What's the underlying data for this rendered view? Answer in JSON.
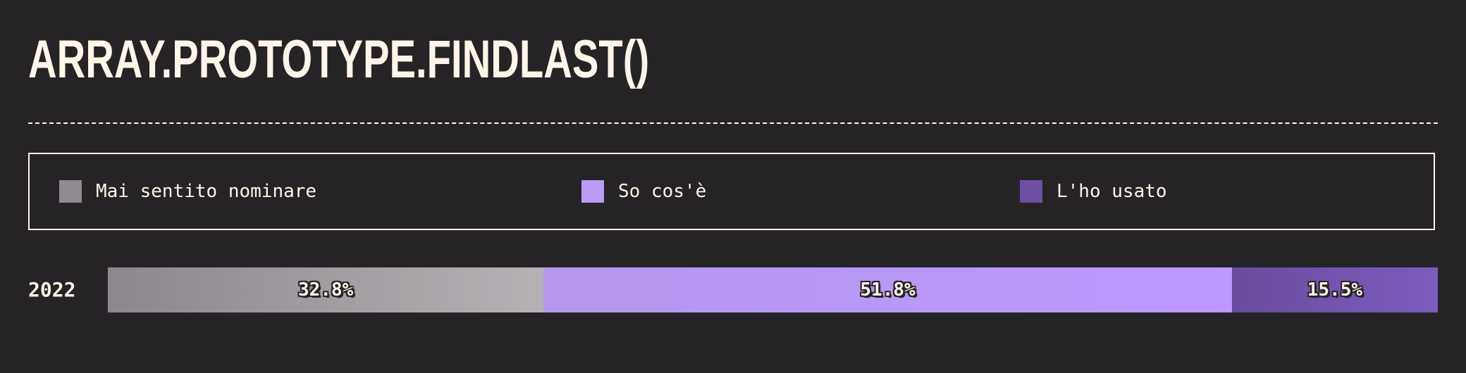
{
  "title": "ARRAY.PROTOTYPE.FINDLAST()",
  "legend": [
    {
      "label": "Mai sentito nominare",
      "color": "#918a90"
    },
    {
      "label": "So cos'è",
      "color": "#b99cf4"
    },
    {
      "label": "L'ho usato",
      "color": "#6d4fa3"
    }
  ],
  "chart_data": {
    "type": "bar",
    "orientation": "horizontal",
    "stacked": true,
    "categories": [
      "2022"
    ],
    "series": [
      {
        "name": "Mai sentito nominare",
        "values": [
          32.8
        ],
        "labels": [
          "32.8%"
        ],
        "gradient": [
          "#8e868d",
          "#b6b1b5"
        ]
      },
      {
        "name": "So cos'è",
        "values": [
          51.8
        ],
        "labels": [
          "51.8%"
        ],
        "gradient": [
          "#b597ed",
          "#bc98ff"
        ]
      },
      {
        "name": "L'ho usato",
        "values": [
          15.5
        ],
        "labels": [
          "15.5%"
        ],
        "gradient": [
          "#6a4b9e",
          "#7c5cbd"
        ]
      }
    ],
    "xlim": [
      0,
      100
    ]
  }
}
